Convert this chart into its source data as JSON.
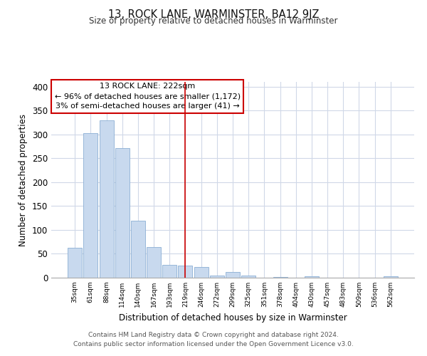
{
  "title": "13, ROCK LANE, WARMINSTER, BA12 9JZ",
  "subtitle": "Size of property relative to detached houses in Warminster",
  "xlabel": "Distribution of detached houses by size in Warminster",
  "ylabel": "Number of detached properties",
  "bar_labels": [
    "35sqm",
    "61sqm",
    "88sqm",
    "114sqm",
    "140sqm",
    "167sqm",
    "193sqm",
    "219sqm",
    "246sqm",
    "272sqm",
    "299sqm",
    "325sqm",
    "351sqm",
    "378sqm",
    "404sqm",
    "430sqm",
    "457sqm",
    "483sqm",
    "509sqm",
    "536sqm",
    "562sqm"
  ],
  "bar_values": [
    63,
    302,
    330,
    271,
    120,
    64,
    27,
    25,
    22,
    5,
    12,
    4,
    0,
    2,
    0,
    3,
    0,
    0,
    0,
    0,
    3
  ],
  "bar_color": "#c8d9ee",
  "bar_edge_color": "#8bafd4",
  "vline_x_index": 7,
  "vline_color": "#cc0000",
  "ylim": [
    0,
    410
  ],
  "yticks": [
    0,
    50,
    100,
    150,
    200,
    250,
    300,
    350,
    400
  ],
  "annotation_title": "13 ROCK LANE: 222sqm",
  "annotation_line1": "← 96% of detached houses are smaller (1,172)",
  "annotation_line2": "3% of semi-detached houses are larger (41) →",
  "annotation_box_color": "#ffffff",
  "annotation_border_color": "#cc0000",
  "footer_line1": "Contains HM Land Registry data © Crown copyright and database right 2024.",
  "footer_line2": "Contains public sector information licensed under the Open Government Licence v3.0.",
  "background_color": "#ffffff",
  "grid_color": "#d0d8e8"
}
